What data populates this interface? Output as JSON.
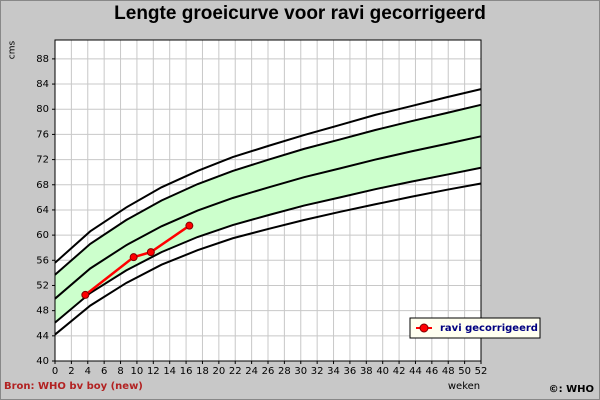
{
  "chart_data": {
    "type": "line",
    "title": "Lengte groeicurve voor ravi gecorrigeerd",
    "y_label": "cms",
    "x_label": "weken",
    "source": "Bron: WHO bv boy (new)",
    "copyright": "©: WHO",
    "xlim": [
      0,
      52
    ],
    "ylim": [
      40,
      91
    ],
    "xticks": [
      0,
      2,
      4,
      6,
      8,
      10,
      12,
      14,
      16,
      18,
      20,
      22,
      24,
      26,
      28,
      30,
      32,
      34,
      36,
      38,
      40,
      42,
      44,
      46,
      48,
      50,
      52
    ],
    "yticks": [
      40,
      44,
      48,
      52,
      56,
      60,
      64,
      68,
      72,
      76,
      80,
      84,
      88
    ],
    "grid": true,
    "band_color": "#ccffcc",
    "legend": "lower right",
    "series": [
      {
        "color": "#000000",
        "x": [
          0,
          4.3,
          8.7,
          13,
          17.4,
          21.7,
          26.1,
          30.4,
          34.8,
          39.1,
          43.5,
          47.8,
          52
        ],
        "values": [
          55.6,
          60.6,
          64.4,
          67.6,
          70.2,
          72.4,
          74.2,
          75.9,
          77.5,
          79.1,
          80.5,
          81.9,
          83.2
        ]
      },
      {
        "color": "#000000",
        "x": [
          0,
          4.3,
          8.7,
          13,
          17.4,
          21.7,
          26.1,
          30.4,
          34.8,
          39.1,
          43.5,
          47.8,
          52
        ],
        "values": [
          53.7,
          58.6,
          62.4,
          65.5,
          68.1,
          70.2,
          72.0,
          73.7,
          75.2,
          76.7,
          78.1,
          79.4,
          80.7
        ]
      },
      {
        "color": "#000000",
        "x": [
          0,
          4.3,
          8.7,
          13,
          17.4,
          21.7,
          26.1,
          30.4,
          34.8,
          39.1,
          43.5,
          47.8,
          52
        ],
        "values": [
          49.9,
          54.7,
          58.4,
          61.4,
          63.9,
          65.9,
          67.6,
          69.2,
          70.6,
          72.0,
          73.3,
          74.5,
          75.7
        ]
      },
      {
        "color": "#000000",
        "x": [
          0,
          4.3,
          8.7,
          13,
          17.4,
          21.7,
          26.1,
          30.4,
          34.8,
          39.1,
          43.5,
          47.8,
          52
        ],
        "values": [
          46.1,
          50.8,
          54.4,
          57.3,
          59.7,
          61.6,
          63.2,
          64.7,
          66.0,
          67.3,
          68.5,
          69.6,
          70.7
        ]
      },
      {
        "color": "#000000",
        "x": [
          0,
          4.3,
          8.7,
          13,
          17.4,
          21.7,
          26.1,
          30.4,
          34.8,
          39.1,
          43.5,
          47.8,
          52
        ],
        "values": [
          44.2,
          48.8,
          52.4,
          55.3,
          57.6,
          59.5,
          61.0,
          62.4,
          63.7,
          64.9,
          66.1,
          67.2,
          68.2
        ]
      },
      {
        "name": "ravi gecorrigeerd",
        "color": "#ff0000",
        "marker": true,
        "x": [
          3.7,
          9.6,
          11.7,
          16.4
        ],
        "values": [
          50.5,
          56.5,
          57.3,
          61.5
        ]
      }
    ]
  }
}
